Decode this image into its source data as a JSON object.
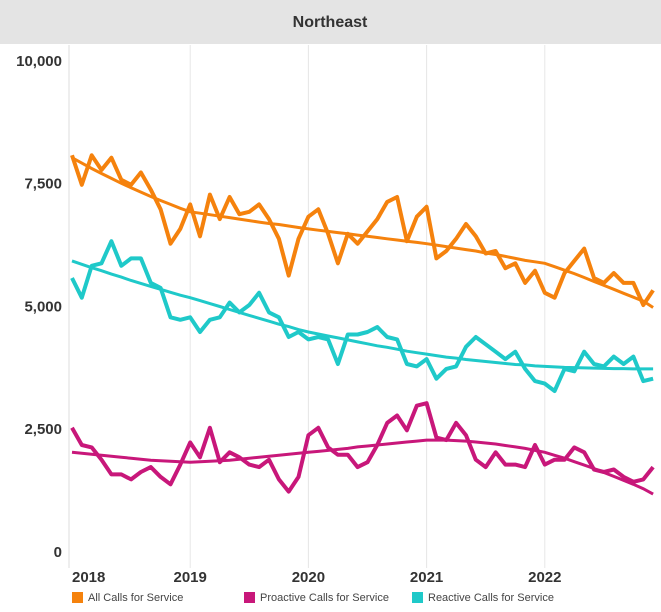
{
  "chart_data": {
    "type": "line",
    "title": "Northeast",
    "categories": [
      "2018",
      null,
      null,
      null,
      null,
      null,
      null,
      null,
      null,
      null,
      null,
      null,
      "2019",
      null,
      null,
      null,
      null,
      null,
      null,
      null,
      null,
      null,
      null,
      null,
      "2020",
      null,
      null,
      null,
      null,
      null,
      null,
      null,
      null,
      null,
      null,
      null,
      "2021",
      null,
      null,
      null,
      null,
      null,
      null,
      null,
      null,
      null,
      null,
      null,
      "2022",
      null,
      null,
      null,
      null,
      null,
      null,
      null,
      null,
      null,
      null,
      null
    ],
    "ylim": [
      0,
      10000
    ],
    "yticks": [
      {
        "value": 10000,
        "label": "10,000"
      },
      {
        "value": 7500,
        "label": "7,500"
      },
      {
        "value": 5000,
        "label": "5,000"
      },
      {
        "value": 2500,
        "label": "2,500"
      },
      0
    ],
    "series": [
      {
        "name": "All Calls for Service",
        "color": "#f5820d",
        "values": [
          8100,
          7500,
          8100,
          7800,
          8050,
          7600,
          7500,
          7750,
          7400,
          7000,
          6300,
          6600,
          7100,
          6450,
          7300,
          6800,
          7250,
          6900,
          6950,
          7100,
          6800,
          6400,
          5650,
          6400,
          6850,
          7000,
          6500,
          5900,
          6500,
          6300,
          6550,
          6800,
          7150,
          7250,
          6350,
          6850,
          7050,
          6000,
          6150,
          6400,
          6700,
          6450,
          6100,
          6150,
          5800,
          5900,
          5500,
          5750,
          5300,
          5200,
          5700,
          5950,
          6200,
          5600,
          5500,
          5700,
          5500,
          5500,
          5050,
          5350
        ],
        "trend": [
          8050,
          7940,
          7830,
          7730,
          7630,
          7530,
          7440,
          7350,
          7260,
          7180,
          7100,
          7020,
          6950,
          6920,
          6890,
          6860,
          6830,
          6800,
          6770,
          6740,
          6710,
          6690,
          6660,
          6630,
          6600,
          6575,
          6550,
          6525,
          6500,
          6475,
          6450,
          6425,
          6400,
          6375,
          6350,
          6325,
          6300,
          6270,
          6240,
          6210,
          6180,
          6150,
          6110,
          6080,
          6040,
          6000,
          5960,
          5930,
          5900,
          5830,
          5760,
          5690,
          5610,
          5530,
          5450,
          5370,
          5290,
          5210,
          5130,
          5000
        ]
      },
      {
        "name": "Proactive Calls for Service",
        "color": "#c8177a",
        "values": [
          2550,
          2200,
          2150,
          1900,
          1600,
          1600,
          1500,
          1650,
          1750,
          1550,
          1400,
          1800,
          2250,
          1950,
          2550,
          1850,
          2050,
          1950,
          1800,
          1750,
          1900,
          1500,
          1250,
          1550,
          2400,
          2550,
          2150,
          2000,
          2000,
          1750,
          1850,
          2200,
          2650,
          2800,
          2500,
          3000,
          3050,
          2350,
          2300,
          2650,
          2400,
          1900,
          1750,
          2050,
          1800,
          1800,
          1750,
          2200,
          1800,
          1900,
          1900,
          2150,
          2050,
          1700,
          1650,
          1700,
          1550,
          1450,
          1500,
          1750
        ],
        "trend": [
          2050,
          2030,
          2010,
          1990,
          1970,
          1950,
          1930,
          1910,
          1890,
          1880,
          1870,
          1860,
          1850,
          1860,
          1870,
          1880,
          1890,
          1910,
          1930,
          1950,
          1970,
          1990,
          2010,
          2030,
          2050,
          2070,
          2090,
          2110,
          2130,
          2160,
          2180,
          2200,
          2220,
          2240,
          2260,
          2280,
          2300,
          2300,
          2300,
          2290,
          2280,
          2260,
          2240,
          2220,
          2190,
          2160,
          2130,
          2090,
          2050,
          1990,
          1930,
          1860,
          1790,
          1720,
          1640,
          1560,
          1480,
          1400,
          1310,
          1200
        ]
      },
      {
        "name": "Reactive Calls for Service",
        "color": "#1fc9c9",
        "values": [
          5600,
          5200,
          5850,
          5900,
          6350,
          5850,
          6000,
          6000,
          5500,
          5400,
          4800,
          4750,
          4800,
          4500,
          4750,
          4800,
          5100,
          4900,
          5050,
          5300,
          4900,
          4800,
          4400,
          4500,
          4350,
          4400,
          4350,
          3850,
          4450,
          4450,
          4500,
          4600,
          4400,
          4350,
          3850,
          3800,
          3950,
          3550,
          3750,
          3800,
          4200,
          4400,
          4250,
          4100,
          3950,
          4100,
          3750,
          3500,
          3450,
          3300,
          3750,
          3700,
          4100,
          3850,
          3800,
          4000,
          3850,
          4000,
          3500,
          3550
        ],
        "trend": [
          5950,
          5880,
          5810,
          5750,
          5680,
          5620,
          5550,
          5490,
          5430,
          5370,
          5310,
          5250,
          5200,
          5140,
          5080,
          5020,
          4960,
          4900,
          4840,
          4780,
          4720,
          4660,
          4610,
          4550,
          4500,
          4460,
          4420,
          4380,
          4340,
          4300,
          4260,
          4220,
          4190,
          4150,
          4110,
          4080,
          4050,
          4020,
          3990,
          3970,
          3940,
          3920,
          3900,
          3880,
          3860,
          3840,
          3830,
          3810,
          3800,
          3790,
          3780,
          3775,
          3770,
          3765,
          3760,
          3755,
          3755,
          3750,
          3750,
          3750
        ]
      }
    ]
  }
}
